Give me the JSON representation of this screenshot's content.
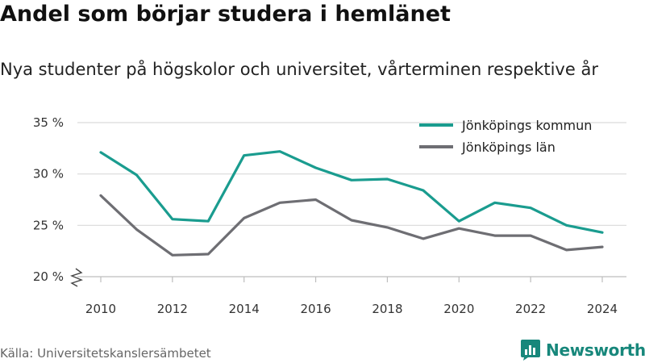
{
  "header": {
    "title": "Andel som börjar studera i hemlänet",
    "subtitle": "Nya studenter på högskolor och universitet, vårterminen respektive år"
  },
  "footer": {
    "source": "Källa: Universitetskanslersämbetet",
    "brand": "Newsworthy",
    "brand_icon": "bar-chart-speech-bubble-icon"
  },
  "colors": {
    "kommun": "#1a9c8f",
    "lan": "#6e6e73",
    "grid": "#d9d9d9",
    "brand": "#17877b"
  },
  "chart_data": {
    "type": "line",
    "title": "Andel som börjar studera i hemlänet",
    "subtitle": "Nya studenter på högskolor och universitet, vårterminen respektive år",
    "x": [
      2010,
      2011,
      2012,
      2013,
      2014,
      2015,
      2016,
      2017,
      2018,
      2019,
      2020,
      2021,
      2022,
      2023,
      2024
    ],
    "x_ticks": [
      2010,
      2012,
      2014,
      2016,
      2018,
      2020,
      2022,
      2024
    ],
    "y_ticks": [
      20,
      25,
      30,
      35
    ],
    "y_tick_labels": [
      "20 %",
      "25 %",
      "30 %",
      "35 %"
    ],
    "ylim": [
      20,
      35
    ],
    "xlim": [
      2010,
      2024
    ],
    "y_axis_break": true,
    "grid": "horizontal",
    "legend_position": "top-right",
    "series": [
      {
        "name": "Jönköpings kommun",
        "color": "#1a9c8f",
        "values": [
          32.1,
          29.9,
          25.6,
          25.4,
          31.8,
          32.2,
          30.6,
          29.4,
          29.5,
          28.4,
          25.4,
          27.2,
          26.7,
          25.0,
          24.3
        ]
      },
      {
        "name": "Jönköpings län",
        "color": "#6e6e73",
        "values": [
          27.9,
          24.6,
          22.1,
          22.2,
          25.7,
          27.2,
          27.5,
          25.5,
          24.8,
          23.7,
          24.7,
          24.0,
          24.0,
          22.6,
          22.9
        ]
      }
    ]
  }
}
